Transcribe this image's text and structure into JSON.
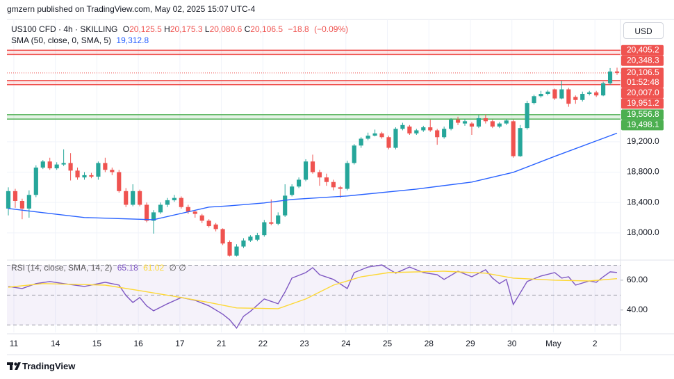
{
  "header": {
    "text": "gmzern published on TradingView.com, May 02, 2025 15:07 UTC-4"
  },
  "footer": {
    "brand": "TradingView"
  },
  "chart_data": [
    {
      "type": "candlestick",
      "symbol": "US100 CFD · 4h · SKILLING",
      "currency": "USD",
      "legend_fields": [
        "O",
        "H",
        "L",
        "C"
      ],
      "legend_values": [
        {
          "value": 20125.5,
          "label": "20,125.5"
        },
        {
          "value": 20175.3,
          "label": "20,175.3"
        },
        {
          "value": 20080.6,
          "label": "20,080.6"
        },
        {
          "value": 20106.5,
          "label": "20,106.5"
        }
      ],
      "change": {
        "value": -18.8,
        "label": "−18.8"
      },
      "change_percent": {
        "value": -0.09,
        "label": "(−0.09%)"
      },
      "up_color": "#26a69a",
      "down_color": "#ef5350",
      "open": [
        18320,
        18550,
        18420,
        18320,
        18500,
        18860,
        18940,
        18850,
        18900,
        18920,
        18820,
        18730,
        18760,
        18740,
        18920,
        18830,
        18800,
        18550,
        18370,
        18550,
        18370,
        18160,
        18270,
        18370,
        18430,
        18460,
        18340,
        18280,
        18230,
        18160,
        18110,
        18050,
        17880,
        17700,
        17820,
        17900,
        17910,
        17970,
        18140,
        18120,
        18230,
        18500,
        18610,
        18700,
        18940,
        18800,
        18730,
        18670,
        18600,
        18580,
        18920,
        19150,
        19240,
        19280,
        19310,
        19260,
        19120,
        19370,
        19400,
        19310,
        19350,
        19390,
        19350,
        19260,
        19370,
        19490,
        19440,
        19440,
        19400,
        19510,
        19470,
        19400,
        19440,
        19470,
        19010,
        19380,
        19710,
        19800,
        19830,
        19890,
        19770,
        19890,
        19790,
        19750,
        19830,
        19850,
        19810,
        19970,
        20125.5
      ],
      "high": [
        18600,
        18580,
        18450,
        18560,
        18890,
        18960,
        18990,
        18930,
        19100,
        19050,
        18860,
        18800,
        18790,
        18940,
        18990,
        18860,
        18830,
        18590,
        18640,
        18570,
        18400,
        18300,
        18400,
        18460,
        18500,
        18480,
        18370,
        18300,
        18250,
        18180,
        18130,
        18060,
        17900,
        17850,
        17930,
        17970,
        18000,
        18170,
        18440,
        18270,
        18640,
        18640,
        18730,
        18970,
        19030,
        18830,
        18780,
        18700,
        18620,
        18950,
        19170,
        19260,
        19320,
        19360,
        19330,
        19280,
        19390,
        19450,
        19420,
        19370,
        19410,
        19490,
        19370,
        19400,
        19510,
        19530,
        19500,
        19460,
        19550,
        19560,
        19490,
        19460,
        19500,
        19490,
        19420,
        19740,
        19820,
        19870,
        19880,
        19900,
        20000,
        19910,
        19810,
        19860,
        19870,
        19870,
        19990,
        20170,
        20175.3
      ],
      "low": [
        18230,
        18330,
        18180,
        18200,
        18470,
        18840,
        18830,
        18830,
        18880,
        18690,
        18700,
        18700,
        18720,
        18700,
        18800,
        18760,
        18530,
        18340,
        18350,
        18350,
        18140,
        17990,
        18250,
        18340,
        18410,
        18320,
        18250,
        18200,
        18130,
        18070,
        18020,
        17840,
        17690,
        17690,
        17800,
        17880,
        17890,
        17950,
        18100,
        18100,
        18210,
        18480,
        18590,
        18680,
        18780,
        18620,
        18620,
        18560,
        18460,
        18560,
        18900,
        19120,
        19220,
        19270,
        19240,
        19100,
        19100,
        19350,
        19290,
        19290,
        19330,
        19330,
        19160,
        19240,
        19350,
        19420,
        19410,
        19290,
        19380,
        19440,
        19380,
        19380,
        19420,
        18990,
        19000,
        19360,
        19690,
        19780,
        19810,
        19750,
        19760,
        19660,
        19700,
        19730,
        19810,
        19790,
        19800,
        19950,
        20080.6
      ],
      "close": [
        18550,
        18420,
        18320,
        18500,
        18860,
        18940,
        18850,
        18900,
        18920,
        18820,
        18730,
        18760,
        18740,
        18920,
        18830,
        18800,
        18550,
        18370,
        18550,
        18370,
        18160,
        18270,
        18370,
        18430,
        18460,
        18340,
        18280,
        18250,
        18160,
        18090,
        18050,
        17860,
        17700,
        17820,
        17900,
        17950,
        17970,
        18140,
        18120,
        18230,
        18490,
        18610,
        18700,
        18940,
        18800,
        18730,
        18670,
        18600,
        18580,
        18920,
        19150,
        19240,
        19280,
        19310,
        19260,
        19120,
        19370,
        19420,
        19310,
        19350,
        19390,
        19350,
        19260,
        19370,
        19490,
        19450,
        19470,
        19400,
        19510,
        19470,
        19400,
        19440,
        19480,
        19010,
        19380,
        19710,
        19800,
        19830,
        19860,
        19770,
        19890,
        19700,
        19750,
        19830,
        19850,
        19810,
        19970,
        20125,
        20106.5
      ],
      "overlays": [
        {
          "name": "SMA (50, close, 0, SMA, 5)",
          "color": "#2962ff",
          "x": [
            0,
            5,
            11,
            21,
            29,
            32,
            37,
            41,
            49,
            59,
            67,
            73,
            79,
            88
          ],
          "values": [
            18321,
            18266,
            18202,
            18174,
            18339,
            18357,
            18394,
            18440,
            18486,
            18577,
            18669,
            18797,
            19008,
            19312.8
          ],
          "legend_value": {
            "value": 19312.8,
            "label": "19,312.8"
          }
        }
      ],
      "levels": [
        {
          "value": 20405.2,
          "label": "20,405.2",
          "color": "#ef5350"
        },
        {
          "value": 20348.3,
          "label": "20,348.3",
          "color": "#ef5350"
        },
        {
          "value": 20007.0,
          "label": "20,007.0",
          "color": "#ef5350"
        },
        {
          "value": 19951.2,
          "label": "19,951.2",
          "color": "#ef5350"
        },
        {
          "value": 19556.8,
          "label": "19,556.8",
          "color": "#4caf50"
        },
        {
          "value": 19498.1,
          "label": "19,498.1",
          "color": "#4caf50"
        }
      ],
      "last_price": {
        "value": 20106.5,
        "label": "20,106.5"
      },
      "countdown": "01:52:48",
      "grid": true,
      "xlim": [
        -0.2,
        88.5
      ],
      "xticks": [
        {
          "value": 0.8,
          "label": "11"
        },
        {
          "value": 6.8,
          "label": "14"
        },
        {
          "value": 12.8,
          "label": "15"
        },
        {
          "value": 18.8,
          "label": "16"
        },
        {
          "value": 24.8,
          "label": "17"
        },
        {
          "value": 30.8,
          "label": "21"
        },
        {
          "value": 36.8,
          "label": "22"
        },
        {
          "value": 42.8,
          "label": "23"
        },
        {
          "value": 48.8,
          "label": "24"
        },
        {
          "value": 54.8,
          "label": "25"
        },
        {
          "value": 60.8,
          "label": "28"
        },
        {
          "value": 66.8,
          "label": "29"
        },
        {
          "value": 72.8,
          "label": "30"
        },
        {
          "value": 78.8,
          "label": "May"
        },
        {
          "value": 84.8,
          "label": "2"
        }
      ],
      "ylim": [
        17660,
        20810
      ],
      "yticks": [
        {
          "value": 18000,
          "label": "18,000.0"
        },
        {
          "value": 18400,
          "label": "18,400.0"
        },
        {
          "value": 18800,
          "label": "18,800.0"
        },
        {
          "value": 19200,
          "label": "19,200.0"
        }
      ]
    },
    {
      "type": "line",
      "title": "RSI (14, close, SMA, 14, 2)",
      "legend_extra": "∅ ∅",
      "band_color": "#7e57c2",
      "levels": [
        70,
        50,
        30
      ],
      "series": [
        {
          "color": "#7e57c2",
          "x": [
            0,
            2,
            4,
            6,
            8,
            11,
            14,
            16,
            17,
            18,
            19,
            20,
            21,
            23,
            25,
            27,
            29,
            31,
            32,
            33,
            34,
            35,
            37,
            39,
            40,
            41,
            43,
            44,
            45,
            47,
            49,
            50,
            52,
            54,
            56,
            58,
            60,
            62,
            63,
            65,
            67,
            69,
            70,
            71,
            72,
            73,
            75,
            77,
            79,
            80,
            81,
            82,
            84,
            85,
            86,
            87,
            88
          ],
          "values": [
            55.8,
            54.4,
            57.7,
            59.1,
            57.7,
            55.8,
            58.6,
            56.7,
            49.8,
            45.1,
            48.4,
            42.8,
            39.5,
            44.2,
            48.4,
            46.5,
            42.8,
            37.2,
            33.5,
            27.9,
            35.8,
            39.1,
            47.4,
            44.2,
            52.1,
            61.4,
            65.1,
            68.4,
            63.7,
            60.5,
            54.4,
            65.1,
            68.8,
            70.2,
            64.7,
            68.8,
            65.1,
            63.7,
            60.5,
            66.0,
            62.3,
            67.0,
            61.4,
            57.7,
            60.5,
            43.7,
            59.1,
            62.8,
            65.1,
            61.4,
            62.3,
            56.7,
            59.5,
            58.6,
            62.3,
            65.6,
            65.18
          ],
          "legend_value": {
            "value": 65.18,
            "label": "65.18"
          }
        },
        {
          "color": "#fdd835",
          "x": [
            0,
            5,
            14,
            19,
            25,
            29,
            33,
            39,
            43,
            47,
            51,
            55,
            63,
            69,
            73,
            79,
            84,
            88
          ],
          "values": [
            55.3,
            57.7,
            56.7,
            53.0,
            48.4,
            45.1,
            41.4,
            40.9,
            47.4,
            56.7,
            62.3,
            65.1,
            66.0,
            64.7,
            61.4,
            60,
            59.5,
            61.02
          ],
          "legend_value": {
            "value": 61.02,
            "label": "61.02"
          }
        }
      ],
      "xlim": [
        -0.2,
        88.5
      ],
      "ylim": [
        25,
        73
      ],
      "yticks": [
        {
          "value": 40,
          "label": "40.00"
        },
        {
          "value": 60,
          "label": "60.00"
        }
      ]
    }
  ]
}
